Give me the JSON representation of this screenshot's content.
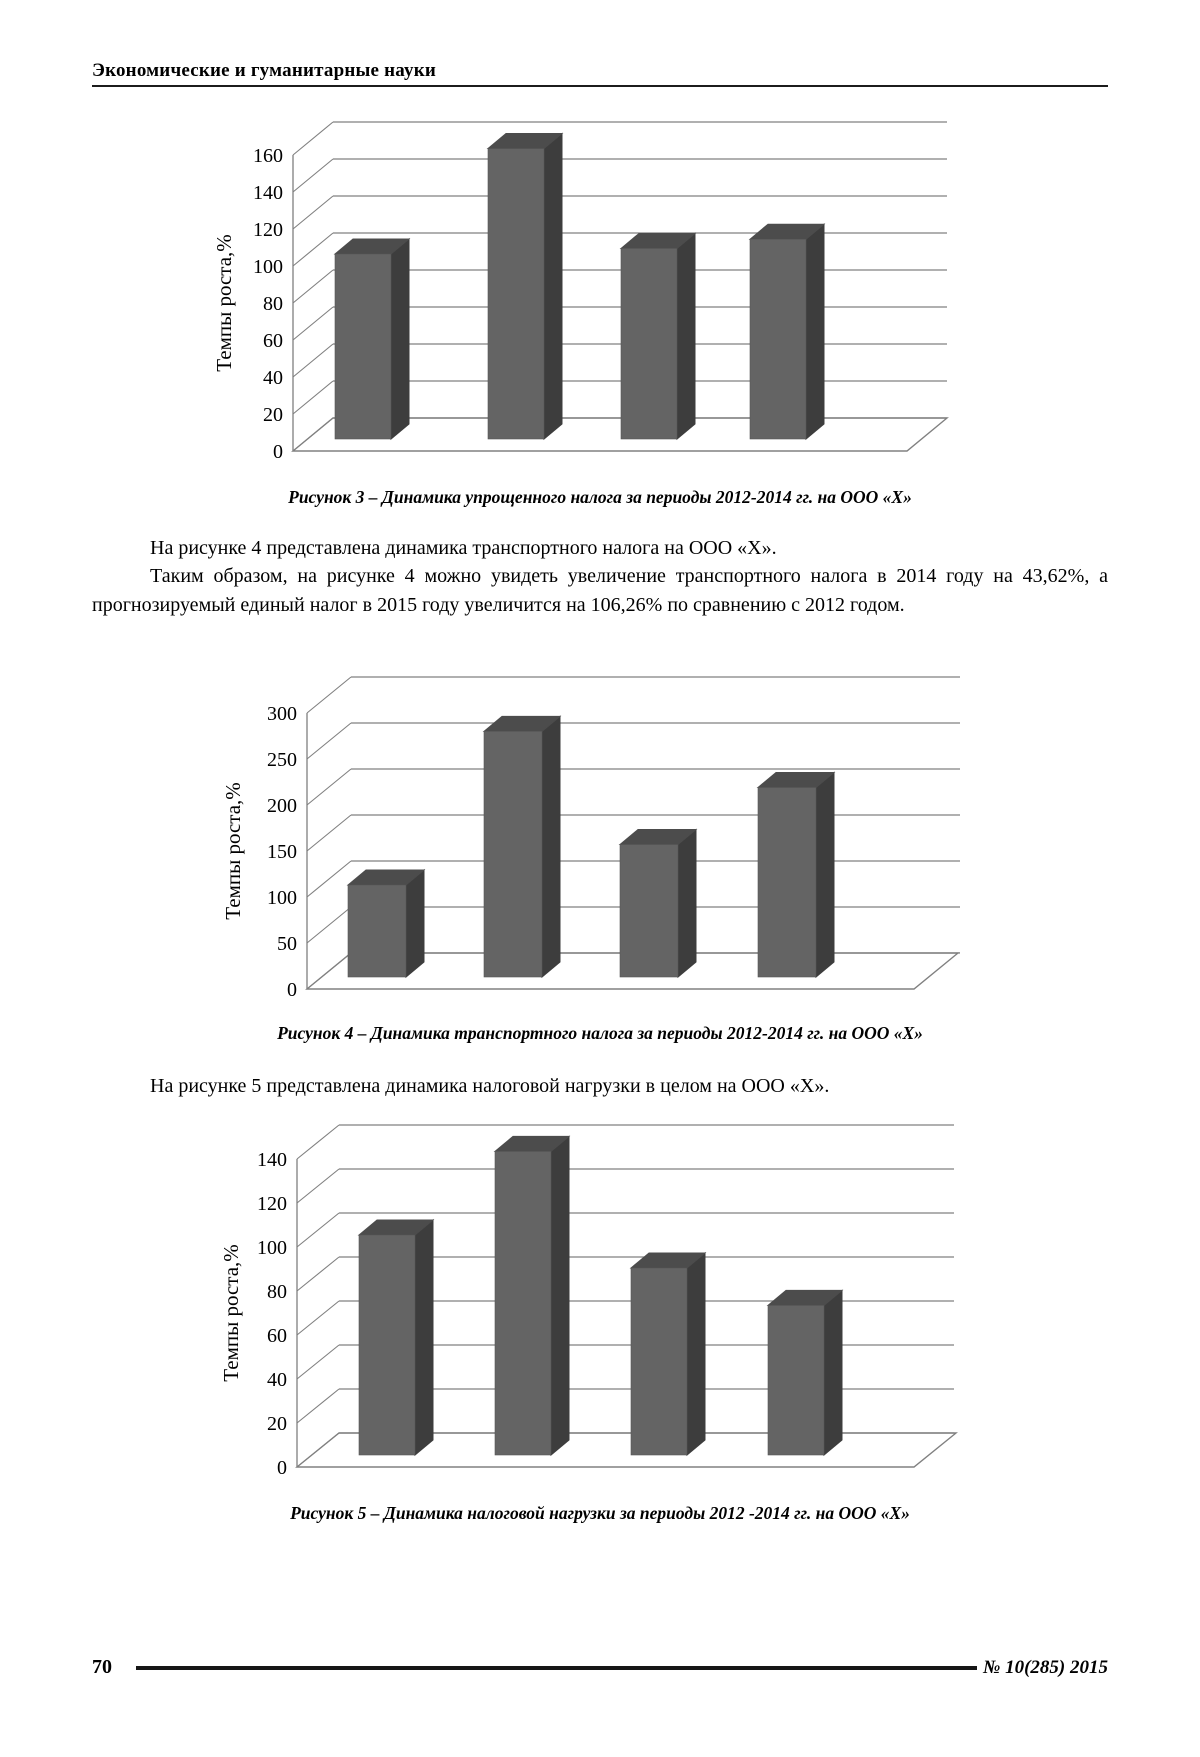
{
  "header": {
    "title": "Экономические и гуманитарные науки"
  },
  "body_text": {
    "paragraph1": "На рисунке 4 представлена динамика транспортного налога на ООО «Х».",
    "paragraph2": "Таким образом, на рисунке 4 можно увидеть увеличение транспортного налога в 2014 году на 43,62%, а прогнозируемый единый налог в 2015 году увеличится на 106,26% по сравнению с 2012 годом.",
    "paragraph3": "На рисунке 5 представлена динамика налоговой нагрузки в целом на ООО «Х»."
  },
  "footer": {
    "page_number": "70",
    "issue": "№ 10(285) 2015"
  },
  "colors": {
    "bar_front": "#646464",
    "bar_side": "#3d3d3d",
    "bar_top": "#4c4c4c",
    "grid_line": "#808080",
    "text": "#000000"
  },
  "chart_data": [
    {
      "type": "bar",
      "projection": "3d-column",
      "title": "",
      "ylabel": "Темпы роста,%",
      "xlabel": "",
      "categories": [
        "",
        "",
        "",
        ""
      ],
      "values": [
        100,
        157,
        103,
        108
      ],
      "ylim": [
        0,
        160
      ],
      "ytick_step": 20,
      "grid": true,
      "legend": false,
      "caption": "Рисунок 3 – Динамика упрощенного налога за периоды 2012-2014 гг. на ООО «Х»"
    },
    {
      "type": "bar",
      "projection": "3d-column",
      "title": "",
      "ylabel": "Темпы роста,%",
      "xlabel": "",
      "categories": [
        "",
        "",
        "",
        ""
      ],
      "values": [
        100,
        267,
        144,
        206
      ],
      "ylim": [
        0,
        300
      ],
      "ytick_step": 50,
      "grid": true,
      "legend": false,
      "caption": "Рисунок 4 – Динамика транспортного налога за периоды 2012-2014 гг. на ООО «Х»"
    },
    {
      "type": "bar",
      "projection": "3d-column",
      "title": "",
      "ylabel": "Темпы роста,%",
      "xlabel": "",
      "categories": [
        "",
        "",
        "",
        ""
      ],
      "values": [
        100,
        138,
        85,
        68
      ],
      "ylim": [
        0,
        140
      ],
      "ytick_step": 20,
      "grid": true,
      "legend": false,
      "caption": "Рисунок 5 – Динамика налоговой нагрузки за периоды 2012 -2014 гг. на ООО «Х»"
    }
  ]
}
